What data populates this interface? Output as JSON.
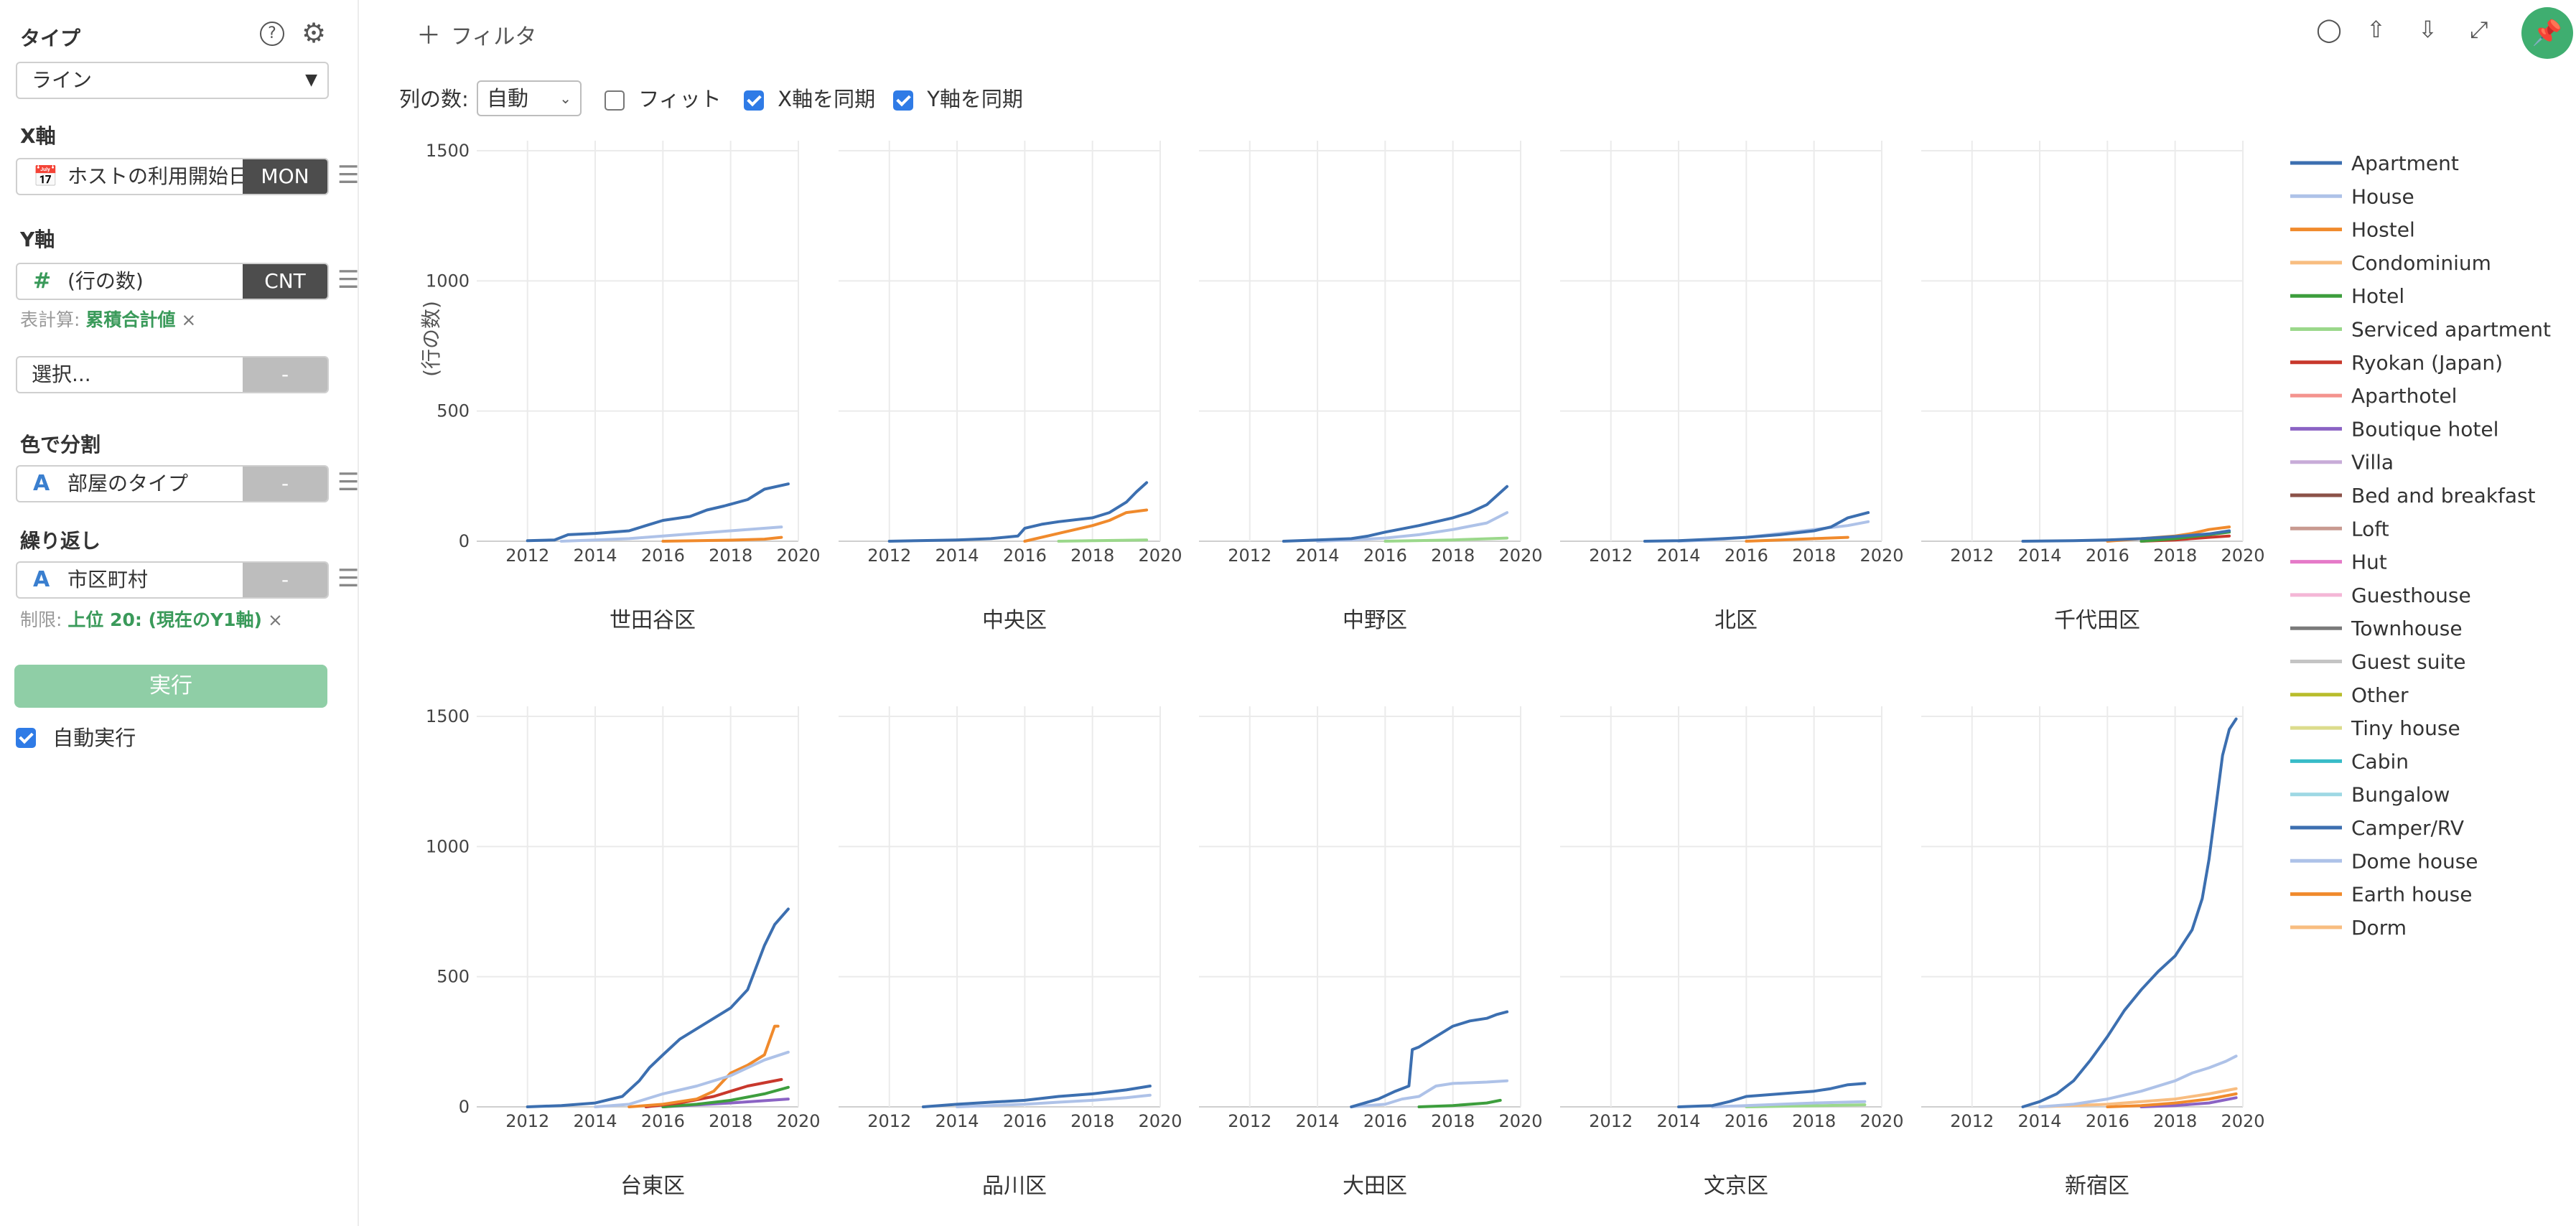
{
  "sidebar": {
    "type_title": "タイプ",
    "type_value": "ライン",
    "xaxis_title": "X軸",
    "xaxis_field": "ホストの利用開始日",
    "xaxis_agg": "MON",
    "yaxis_title": "Y軸",
    "yaxis_field": "(行の数)",
    "yaxis_agg": "CNT",
    "table_calc_label": "表計算:",
    "table_calc_value": "累積合計値",
    "extra_field_placeholder": "選択...",
    "extra_field_agg": "-",
    "color_title": "色で分割",
    "color_field": "部屋のタイプ",
    "color_agg": "-",
    "repeat_title": "繰り返し",
    "repeat_field": "市区町村",
    "repeat_agg": "-",
    "limit_label": "制限:",
    "limit_value": "上位 20: (現在のY1軸)",
    "remove_mark": "×",
    "run_label": "実行",
    "auto_run_label": "自動実行",
    "auto_run_checked": true
  },
  "toolbar": {
    "filter_label": "フィルタ",
    "columns_label": "列の数:",
    "columns_value": "自動",
    "fit_label": "フィット",
    "fit_checked": false,
    "sync_x_label": "X軸を同期",
    "sync_x_checked": true,
    "sync_y_label": "Y軸を同期",
    "sync_y_checked": true,
    "icons": [
      "comment-icon",
      "upload-icon",
      "download-icon",
      "expand-icon",
      "pin-icon"
    ]
  },
  "chart_data": {
    "type": "line",
    "ylabel": "(行の数)",
    "xlabel": "",
    "ylim": [
      0,
      1500
    ],
    "yticks": [
      0,
      500,
      1000,
      1500
    ],
    "xlim": [
      2010.5,
      2020
    ],
    "xticks": [
      2012,
      2014,
      2016,
      2018,
      2020
    ],
    "grid": true,
    "legend_position": "right",
    "legend": [
      {
        "name": "Apartment",
        "color": "#3c6fb0"
      },
      {
        "name": "House",
        "color": "#aec2e8"
      },
      {
        "name": "Hostel",
        "color": "#f08a2c"
      },
      {
        "name": "Condominium",
        "color": "#f8bd80"
      },
      {
        "name": "Hotel",
        "color": "#3d9e3d"
      },
      {
        "name": "Serviced apartment",
        "color": "#9bd88b"
      },
      {
        "name": "Ryokan (Japan)",
        "color": "#c8382c"
      },
      {
        "name": "Aparthotel",
        "color": "#f4938e"
      },
      {
        "name": "Boutique hotel",
        "color": "#8b63c4"
      },
      {
        "name": "Villa",
        "color": "#c8acd8"
      },
      {
        "name": "Bed and breakfast",
        "color": "#8b5248"
      },
      {
        "name": "Loft",
        "color": "#c89a90"
      },
      {
        "name": "Hut",
        "color": "#e57ac8"
      },
      {
        "name": "Guesthouse",
        "color": "#f4b6d6"
      },
      {
        "name": "Townhouse",
        "color": "#7a7a7a"
      },
      {
        "name": "Guest suite",
        "color": "#c4c4c4"
      },
      {
        "name": "Other",
        "color": "#b8bd2c"
      },
      {
        "name": "Tiny house",
        "color": "#dcdc8c"
      },
      {
        "name": "Cabin",
        "color": "#38bcc8"
      },
      {
        "name": "Bungalow",
        "color": "#9ed8e4"
      },
      {
        "name": "Camper/RV",
        "color": "#3c6fb0"
      },
      {
        "name": "Dome house",
        "color": "#aec2e8"
      },
      {
        "name": "Earth house",
        "color": "#f08a2c"
      },
      {
        "name": "Dorm",
        "color": "#f8bd80"
      }
    ],
    "facets": [
      {
        "title": "世田谷区",
        "series": [
          {
            "name": "Apartment",
            "x": [
              2012,
              2012.8,
              2013.2,
              2014,
              2015,
              2015.5,
              2016,
              2016.8,
              2017.3,
              2017.8,
              2018.5,
              2019,
              2019.7
            ],
            "y": [
              2,
              5,
              25,
              30,
              40,
              60,
              80,
              95,
              120,
              135,
              160,
              200,
              220
            ]
          },
          {
            "name": "House",
            "x": [
              2013,
              2014,
              2015,
              2016,
              2017,
              2018,
              2019.5
            ],
            "y": [
              0,
              5,
              10,
              20,
              30,
              40,
              55
            ]
          },
          {
            "name": "Hostel",
            "x": [
              2016,
              2017,
              2018,
              2019,
              2019.5
            ],
            "y": [
              0,
              2,
              4,
              8,
              15
            ]
          }
        ]
      },
      {
        "title": "中央区",
        "series": [
          {
            "name": "Apartment",
            "x": [
              2012,
              2014,
              2015,
              2015.8,
              2016,
              2016.5,
              2017,
              2018,
              2018.5,
              2019,
              2019.3,
              2019.6
            ],
            "y": [
              0,
              5,
              10,
              20,
              50,
              65,
              75,
              90,
              110,
              150,
              190,
              225
            ]
          },
          {
            "name": "Hostel",
            "x": [
              2016,
              2017,
              2018,
              2018.5,
              2019,
              2019.6
            ],
            "y": [
              0,
              30,
              60,
              80,
              110,
              120
            ]
          },
          {
            "name": "Serviced apartment",
            "x": [
              2017,
              2018,
              2019.6
            ],
            "y": [
              0,
              2,
              5
            ]
          }
        ]
      },
      {
        "title": "中野区",
        "series": [
          {
            "name": "Apartment",
            "x": [
              2013,
              2014,
              2015,
              2015.5,
              2016,
              2017,
              2018,
              2018.5,
              2019,
              2019.6
            ],
            "y": [
              0,
              5,
              10,
              20,
              35,
              60,
              90,
              110,
              140,
              210
            ]
          },
          {
            "name": "House",
            "x": [
              2014,
              2015,
              2016,
              2017,
              2018,
              2019,
              2019.6
            ],
            "y": [
              0,
              5,
              12,
              25,
              45,
              70,
              110
            ]
          },
          {
            "name": "Serviced apartment",
            "x": [
              2016,
              2018,
              2019.6
            ],
            "y": [
              0,
              5,
              12
            ]
          }
        ]
      },
      {
        "title": "北区",
        "series": [
          {
            "name": "Apartment",
            "x": [
              2013,
              2014,
              2015,
              2016,
              2017,
              2018,
              2018.5,
              2019,
              2019.6
            ],
            "y": [
              0,
              2,
              8,
              15,
              25,
              40,
              55,
              90,
              110
            ]
          },
          {
            "name": "House",
            "x": [
              2014,
              2015,
              2016,
              2017,
              2018,
              2019,
              2019.6
            ],
            "y": [
              0,
              5,
              15,
              30,
              45,
              60,
              75
            ]
          },
          {
            "name": "Hostel",
            "x": [
              2016,
              2017,
              2018,
              2019
            ],
            "y": [
              0,
              5,
              10,
              15
            ]
          }
        ]
      },
      {
        "title": "千代田区",
        "series": [
          {
            "name": "Apartment",
            "x": [
              2013.5,
              2015,
              2016,
              2017,
              2018,
              2019,
              2019.6
            ],
            "y": [
              0,
              2,
              5,
              10,
              18,
              28,
              40
            ]
          },
          {
            "name": "Hostel",
            "x": [
              2016,
              2017,
              2018,
              2018.5,
              2019,
              2019.6
            ],
            "y": [
              0,
              10,
              20,
              30,
              45,
              55
            ]
          },
          {
            "name": "Hotel",
            "x": [
              2017,
              2018,
              2019,
              2019.6
            ],
            "y": [
              0,
              10,
              25,
              35
            ]
          },
          {
            "name": "Ryokan (Japan)",
            "x": [
              2017,
              2018,
              2019,
              2019.6
            ],
            "y": [
              0,
              5,
              15,
              20
            ]
          }
        ]
      },
      {
        "title": "台東区",
        "series": [
          {
            "name": "Apartment",
            "x": [
              2012,
              2013,
              2014,
              2014.8,
              2015.3,
              2015.6,
              2016,
              2016.5,
              2017,
              2017.5,
              2018,
              2018.5,
              2019,
              2019.3,
              2019.7
            ],
            "y": [
              0,
              5,
              15,
              40,
              100,
              150,
              200,
              260,
              300,
              340,
              380,
              450,
              620,
              700,
              760
            ]
          },
          {
            "name": "House",
            "x": [
              2014,
              2015,
              2016,
              2017,
              2018,
              2018.5,
              2019,
              2019.7
            ],
            "y": [
              0,
              10,
              50,
              80,
              120,
              150,
              180,
              210
            ]
          },
          {
            "name": "Hostel",
            "x": [
              2015,
              2016,
              2017,
              2017.5,
              2018,
              2018.5,
              2019,
              2019.3,
              2019.4
            ],
            "y": [
              0,
              10,
              30,
              60,
              130,
              160,
              200,
              310,
              310
            ]
          },
          {
            "name": "Ryokan (Japan)",
            "x": [
              2015.5,
              2016.5,
              2017.5,
              2018.5,
              2019.5
            ],
            "y": [
              0,
              15,
              40,
              80,
              105
            ]
          },
          {
            "name": "Hotel",
            "x": [
              2016,
              2017,
              2018,
              2019,
              2019.7
            ],
            "y": [
              0,
              10,
              25,
              50,
              75
            ]
          },
          {
            "name": "Boutique hotel",
            "x": [
              2016,
              2018,
              2019.7
            ],
            "y": [
              0,
              15,
              30
            ]
          }
        ]
      },
      {
        "title": "品川区",
        "series": [
          {
            "name": "Apartment",
            "x": [
              2013,
              2014,
              2015,
              2016,
              2017,
              2018,
              2019,
              2019.7
            ],
            "y": [
              0,
              10,
              18,
              25,
              40,
              50,
              65,
              80
            ]
          },
          {
            "name": "House",
            "x": [
              2014,
              2015,
              2016,
              2017,
              2018,
              2019,
              2019.7
            ],
            "y": [
              0,
              5,
              10,
              18,
              25,
              35,
              45
            ]
          }
        ]
      },
      {
        "title": "大田区",
        "series": [
          {
            "name": "Apartment",
            "x": [
              2015,
              2015.8,
              2016.3,
              2016.7,
              2016.8,
              2017,
              2017.5,
              2018,
              2018.5,
              2019,
              2019.3,
              2019.6
            ],
            "y": [
              0,
              30,
              60,
              80,
              220,
              230,
              270,
              310,
              330,
              340,
              355,
              365
            ]
          },
          {
            "name": "House",
            "x": [
              2015,
              2016,
              2016.5,
              2017,
              2017.5,
              2018,
              2019,
              2019.6
            ],
            "y": [
              0,
              10,
              30,
              40,
              80,
              90,
              95,
              100
            ]
          },
          {
            "name": "Hotel",
            "x": [
              2017,
              2018,
              2019,
              2019.4
            ],
            "y": [
              0,
              5,
              15,
              25
            ]
          }
        ]
      },
      {
        "title": "文京区",
        "series": [
          {
            "name": "Apartment",
            "x": [
              2014,
              2015,
              2015.5,
              2016,
              2017,
              2018,
              2018.5,
              2019,
              2019.5
            ],
            "y": [
              0,
              5,
              20,
              40,
              50,
              60,
              70,
              85,
              90
            ]
          },
          {
            "name": "House",
            "x": [
              2015,
              2016,
              2017,
              2018,
              2019.5
            ],
            "y": [
              0,
              5,
              10,
              15,
              20
            ]
          },
          {
            "name": "Serviced apartment",
            "x": [
              2016,
              2018,
              2019.5
            ],
            "y": [
              0,
              4,
              8
            ]
          }
        ]
      },
      {
        "title": "新宿区",
        "series": [
          {
            "name": "Apartment",
            "x": [
              2013.5,
              2014,
              2014.5,
              2015,
              2015.5,
              2016,
              2016.5,
              2017,
              2017.5,
              2018,
              2018.5,
              2018.8,
              2019,
              2019.2,
              2019.4,
              2019.6,
              2019.8
            ],
            "y": [
              0,
              20,
              50,
              100,
              180,
              270,
              370,
              450,
              520,
              580,
              680,
              800,
              950,
              1150,
              1350,
              1450,
              1490
            ]
          },
          {
            "name": "House",
            "x": [
              2014,
              2015,
              2016,
              2017,
              2018,
              2018.5,
              2019,
              2019.5,
              2019.8
            ],
            "y": [
              0,
              10,
              30,
              60,
              100,
              130,
              150,
              175,
              195
            ]
          },
          {
            "name": "Condominium",
            "x": [
              2014,
              2016,
              2018,
              2019,
              2019.8
            ],
            "y": [
              0,
              10,
              30,
              50,
              70
            ]
          },
          {
            "name": "Hostel",
            "x": [
              2016,
              2017,
              2018,
              2019,
              2019.8
            ],
            "y": [
              0,
              5,
              15,
              30,
              50
            ]
          },
          {
            "name": "Boutique hotel",
            "x": [
              2017,
              2018,
              2019,
              2019.8
            ],
            "y": [
              0,
              5,
              15,
              35
            ]
          }
        ]
      }
    ]
  }
}
